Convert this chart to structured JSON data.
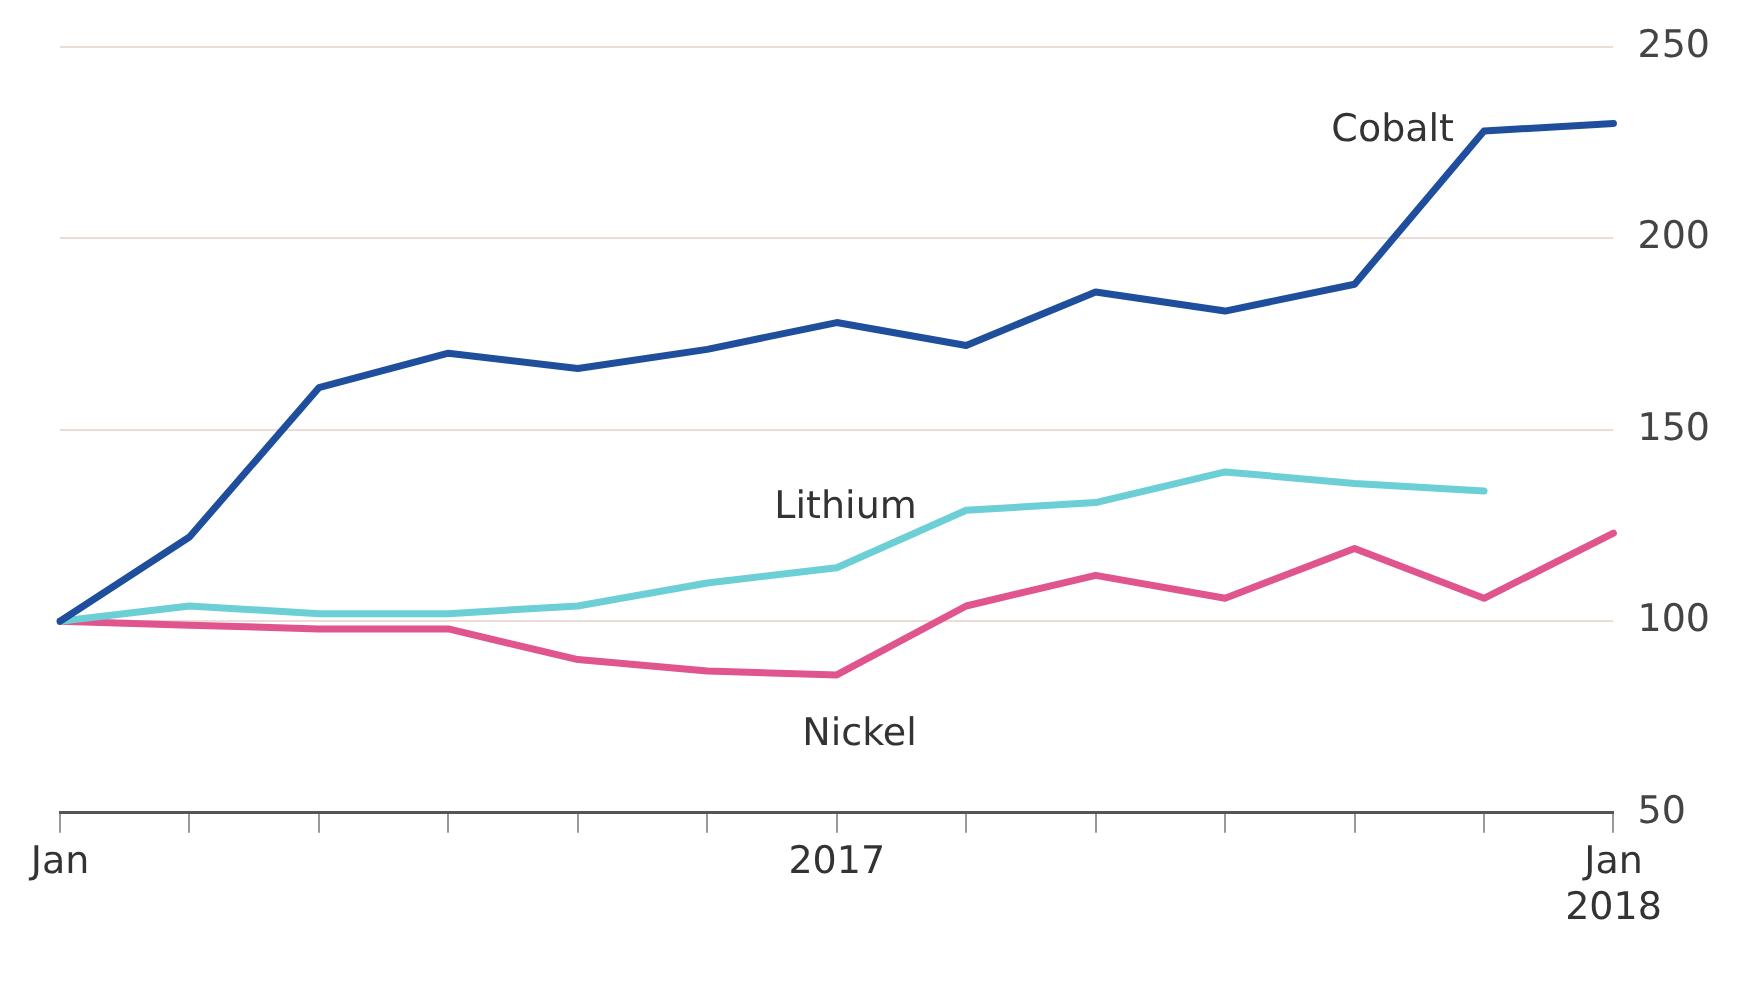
{
  "chart_data": {
    "type": "line",
    "categories": [
      "Jan",
      null,
      null,
      null,
      null,
      null,
      "2017",
      null,
      null,
      null,
      null,
      null,
      "Jan 2018"
    ],
    "series": [
      {
        "name": "Cobalt",
        "color": "#1f4e9c",
        "values": [
          100,
          122,
          161,
          170,
          166,
          171,
          178,
          172,
          186,
          181,
          188,
          228,
          230
        ]
      },
      {
        "name": "Lithium",
        "color": "#6ccfd6",
        "values": [
          100,
          104,
          102,
          102,
          104,
          110,
          114,
          129,
          131,
          139,
          136,
          134,
          null
        ]
      },
      {
        "name": "Nickel",
        "color": "#e0558d",
        "values": [
          100,
          99,
          98,
          98,
          90,
          87,
          86,
          104,
          112,
          106,
          119,
          106,
          123
        ]
      }
    ],
    "ylim": [
      50,
      250
    ],
    "yticks": [
      50,
      100,
      150,
      200,
      250
    ],
    "grid": "y",
    "legend": false,
    "marker": "none",
    "line_style": "solid"
  }
}
